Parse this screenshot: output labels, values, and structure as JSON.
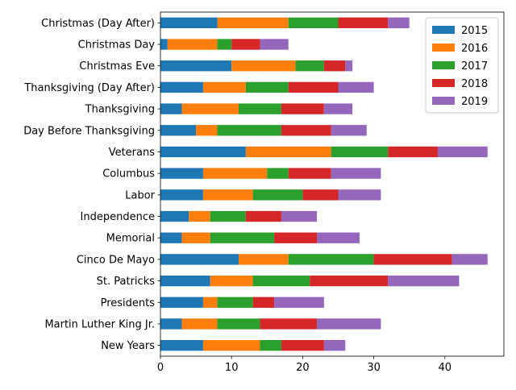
{
  "chart_data": {
    "type": "bar",
    "orientation": "horizontal",
    "stacked": true,
    "title": "",
    "xlabel": "",
    "ylabel": "",
    "xlim": [
      0,
      48.3
    ],
    "xticks": [
      0,
      10,
      20,
      30,
      40
    ],
    "grid": false,
    "legend_position": "top-right",
    "categories": [
      "New Years",
      "Martin Luther King Jr.",
      "Presidents",
      "St. Patricks",
      "Cinco De Mayo",
      "Memorial",
      "Independence",
      "Labor",
      "Columbus",
      "Veterans",
      "Day Before Thanksgiving",
      "Thanksgiving",
      "Thanksgiving (Day After)",
      "Christmas Eve",
      "Christmas Day",
      "Christmas (Day After)"
    ],
    "series": [
      {
        "name": "2015",
        "color": "#1f77b4",
        "values": [
          6,
          3,
          6,
          7,
          11,
          3,
          4,
          6,
          6,
          12,
          5,
          3,
          6,
          10,
          1,
          8
        ]
      },
      {
        "name": "2016",
        "color": "#ff7f0e",
        "values": [
          8,
          5,
          2,
          6,
          7,
          4,
          3,
          7,
          9,
          12,
          3,
          8,
          6,
          9,
          7,
          10
        ]
      },
      {
        "name": "2017",
        "color": "#2ca02c",
        "values": [
          3,
          6,
          5,
          8,
          12,
          9,
          5,
          7,
          3,
          8,
          9,
          6,
          6,
          4,
          2,
          7
        ]
      },
      {
        "name": "2018",
        "color": "#d62728",
        "values": [
          6,
          8,
          3,
          11,
          11,
          6,
          5,
          5,
          6,
          7,
          7,
          6,
          7,
          3,
          4,
          7
        ]
      },
      {
        "name": "2019",
        "color": "#9467bd",
        "values": [
          3,
          9,
          7,
          10,
          5,
          6,
          5,
          6,
          7,
          7,
          5,
          4,
          5,
          1,
          4,
          3
        ]
      }
    ]
  }
}
